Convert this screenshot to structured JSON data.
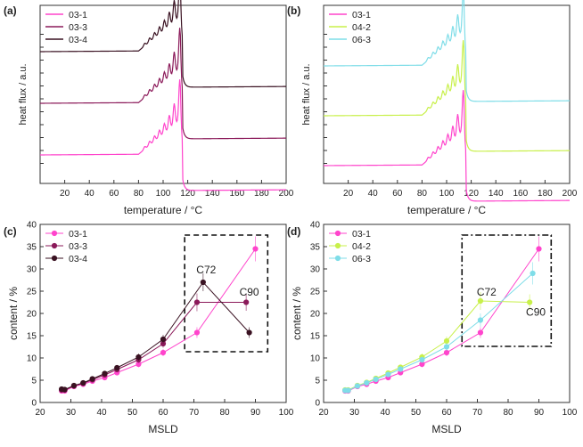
{
  "chart_data": [
    {
      "id": "a",
      "type": "line",
      "panel_label": "(a)",
      "xlabel": "temperature / °C",
      "ylabel": "heat flux / a.u.",
      "xlim": [
        0,
        200
      ],
      "x_ticks": [
        20,
        40,
        60,
        80,
        100,
        120,
        140,
        160,
        180,
        200
      ],
      "legend_position": "top-left",
      "series": [
        {
          "name": "03-1",
          "color": "#ff44cc",
          "baseline": 0.16
        },
        {
          "name": "03-3",
          "color": "#8b1a5a",
          "baseline": 0.45
        },
        {
          "name": "03-4",
          "color": "#3a1222",
          "baseline": 0.74
        }
      ]
    },
    {
      "id": "b",
      "type": "line",
      "panel_label": "(b)",
      "xlabel": "temperature / °C",
      "ylabel": "heat flux / a.u.",
      "xlim": [
        0,
        200
      ],
      "x_ticks": [
        20,
        40,
        60,
        80,
        100,
        120,
        140,
        160,
        180,
        200
      ],
      "legend_position": "top-left",
      "series": [
        {
          "name": "03-1",
          "color": "#ff44cc",
          "baseline": 0.1
        },
        {
          "name": "04-2",
          "color": "#c8f04a",
          "baseline": 0.38
        },
        {
          "name": "06-3",
          "color": "#7fdde8",
          "baseline": 0.66
        }
      ]
    },
    {
      "id": "c",
      "type": "scatter",
      "panel_label": "(c)",
      "xlabel": "MSLD",
      "ylabel": "content / %",
      "xlim": [
        20,
        100
      ],
      "ylim": [
        0,
        40
      ],
      "x_ticks": [
        20,
        30,
        40,
        50,
        60,
        70,
        80,
        90,
        100
      ],
      "y_ticks": [
        0,
        5,
        10,
        15,
        20,
        25,
        30,
        35,
        40
      ],
      "legend_position": "top-left",
      "annotations": [
        "C72",
        "C90"
      ],
      "series": [
        {
          "name": "03-1",
          "color": "#ff44cc",
          "x": [
            27,
            28,
            31,
            34,
            37,
            41,
            45,
            52,
            60,
            71,
            90
          ],
          "y": [
            2.6,
            2.6,
            3.6,
            4.1,
            4.8,
            5.6,
            6.7,
            8.6,
            11.2,
            15.7,
            34.5
          ],
          "err": [
            0.3,
            0.3,
            0.3,
            0.4,
            0.4,
            0.5,
            0.6,
            0.7,
            0.8,
            1.2,
            2.8
          ]
        },
        {
          "name": "03-3",
          "color": "#8b1a5a",
          "x": [
            27,
            28,
            31,
            34,
            37,
            41,
            45,
            52,
            60,
            71,
            87
          ],
          "y": [
            2.8,
            2.8,
            3.7,
            4.3,
            5.1,
            6.2,
            7.4,
            9.6,
            13.2,
            22.5,
            22.5
          ],
          "err": [
            0.3,
            0.3,
            0.3,
            0.4,
            0.4,
            0.5,
            0.6,
            0.7,
            0.9,
            2.0,
            1.9
          ]
        },
        {
          "name": "03-4",
          "color": "#3a1222",
          "x": [
            27,
            28,
            31,
            34,
            37,
            41,
            45,
            52,
            60,
            73,
            88
          ],
          "y": [
            3.0,
            2.9,
            3.8,
            4.4,
            5.3,
            6.5,
            7.8,
            10.2,
            14.2,
            27.0,
            15.7
          ],
          "err": [
            0.3,
            0.3,
            0.3,
            0.4,
            0.4,
            0.5,
            0.6,
            0.8,
            1.0,
            2.0,
            1.2
          ]
        }
      ]
    },
    {
      "id": "d",
      "type": "scatter",
      "panel_label": "(d)",
      "xlabel": "MSLD",
      "ylabel": "content / %",
      "xlim": [
        20,
        100
      ],
      "ylim": [
        0,
        40
      ],
      "x_ticks": [
        20,
        30,
        40,
        50,
        60,
        70,
        80,
        90,
        100
      ],
      "y_ticks": [
        0,
        5,
        10,
        15,
        20,
        25,
        30,
        35,
        40
      ],
      "legend_position": "top-left",
      "annotations": [
        "C72",
        "C90"
      ],
      "series": [
        {
          "name": "03-1",
          "color": "#ff44cc",
          "x": [
            27,
            28,
            31,
            34,
            37,
            41,
            45,
            52,
            60,
            71,
            90
          ],
          "y": [
            2.6,
            2.6,
            3.6,
            4.1,
            4.8,
            5.6,
            6.7,
            8.6,
            11.2,
            15.7,
            34.5
          ],
          "err": [
            0.3,
            0.3,
            0.3,
            0.4,
            0.4,
            0.5,
            0.6,
            0.7,
            0.8,
            1.2,
            2.8
          ]
        },
        {
          "name": "04-2",
          "color": "#c8f04a",
          "x": [
            27,
            28,
            31,
            34,
            37,
            41,
            45,
            52,
            60,
            71,
            87
          ],
          "y": [
            2.8,
            2.8,
            3.8,
            4.5,
            5.4,
            6.6,
            7.9,
            10.2,
            13.8,
            22.8,
            22.5
          ],
          "err": [
            0.3,
            0.3,
            0.3,
            0.4,
            0.4,
            0.5,
            0.6,
            0.8,
            1.0,
            2.0,
            1.8
          ]
        },
        {
          "name": "06-3",
          "color": "#7fdde8",
          "x": [
            27,
            28,
            31,
            34,
            37,
            41,
            45,
            52,
            60,
            71,
            88
          ],
          "y": [
            2.7,
            2.7,
            3.7,
            4.4,
            5.2,
            6.3,
            7.5,
            9.6,
            12.5,
            18.5,
            29.0
          ],
          "err": [
            0.3,
            0.3,
            0.3,
            0.4,
            0.4,
            0.5,
            0.6,
            0.7,
            0.9,
            1.5,
            2.5
          ]
        }
      ]
    }
  ]
}
